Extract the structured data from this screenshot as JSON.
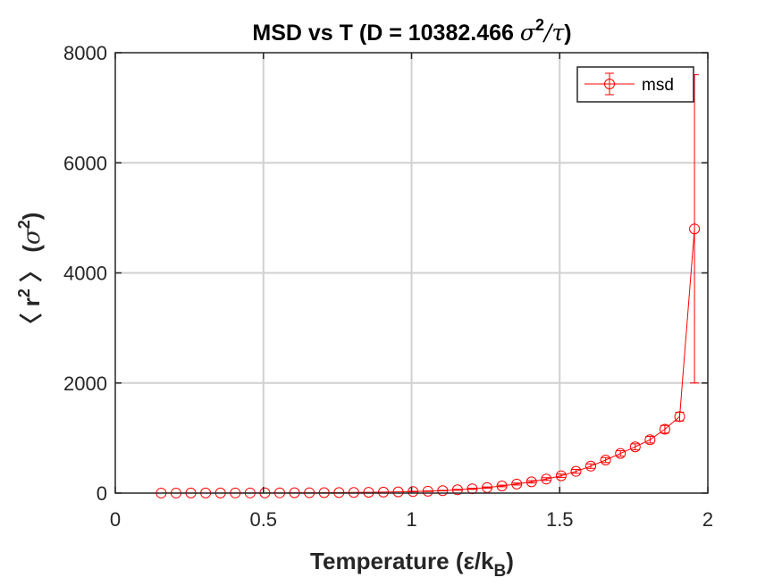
{
  "chart_data": {
    "type": "scatter",
    "title": {
      "prefix": "MSD vs T  (D = 10382.466 ",
      "sigma": "σ",
      "exp": "2",
      "slash": "/",
      "tau": "τ",
      "suffix": ")"
    },
    "xlabel": {
      "main": "Temperature (ε/k",
      "sub": "B",
      "end": ")"
    },
    "ylabel": {
      "open": "〈 r",
      "exp1": "2",
      "mid": " 〉 (",
      "sigma": "σ",
      "exp2": "2",
      "close": ")"
    },
    "xlim": [
      0,
      2
    ],
    "ylim": [
      0,
      8000
    ],
    "xticks": [
      0,
      0.5,
      1,
      1.5,
      2
    ],
    "xtick_labels": [
      "0",
      "0.5",
      "1",
      "1.5",
      "2"
    ],
    "yticks": [
      0,
      2000,
      4000,
      6000,
      8000
    ],
    "ytick_labels": [
      "0",
      "2000",
      "4000",
      "6000",
      "8000"
    ],
    "grid": true,
    "legend_position": "top-right",
    "series": [
      {
        "name": "msd",
        "color": "#ff0000",
        "marker": "circle",
        "x": [
          0.155,
          0.205,
          0.255,
          0.305,
          0.355,
          0.405,
          0.455,
          0.505,
          0.555,
          0.605,
          0.655,
          0.705,
          0.755,
          0.805,
          0.855,
          0.905,
          0.955,
          1.005,
          1.055,
          1.105,
          1.155,
          1.205,
          1.255,
          1.305,
          1.355,
          1.405,
          1.455,
          1.505,
          1.555,
          1.605,
          1.655,
          1.705,
          1.755,
          1.805,
          1.855,
          1.905,
          1.955
        ],
        "y": [
          1,
          1,
          2,
          2,
          2,
          3,
          3,
          4,
          5,
          6,
          7,
          8,
          10,
          12,
          15,
          18,
          22,
          28,
          35,
          45,
          60,
          78,
          100,
          130,
          165,
          205,
          255,
          315,
          395,
          490,
          600,
          720,
          840,
          970,
          1160,
          1390,
          4800
        ],
        "err": [
          0,
          0,
          0,
          0,
          0,
          0,
          0,
          0,
          0,
          0,
          0,
          0,
          0,
          0,
          0,
          0,
          0,
          5,
          5,
          5,
          8,
          10,
          12,
          15,
          18,
          22,
          25,
          30,
          35,
          40,
          45,
          50,
          55,
          60,
          70,
          80,
          2800
        ]
      }
    ]
  }
}
